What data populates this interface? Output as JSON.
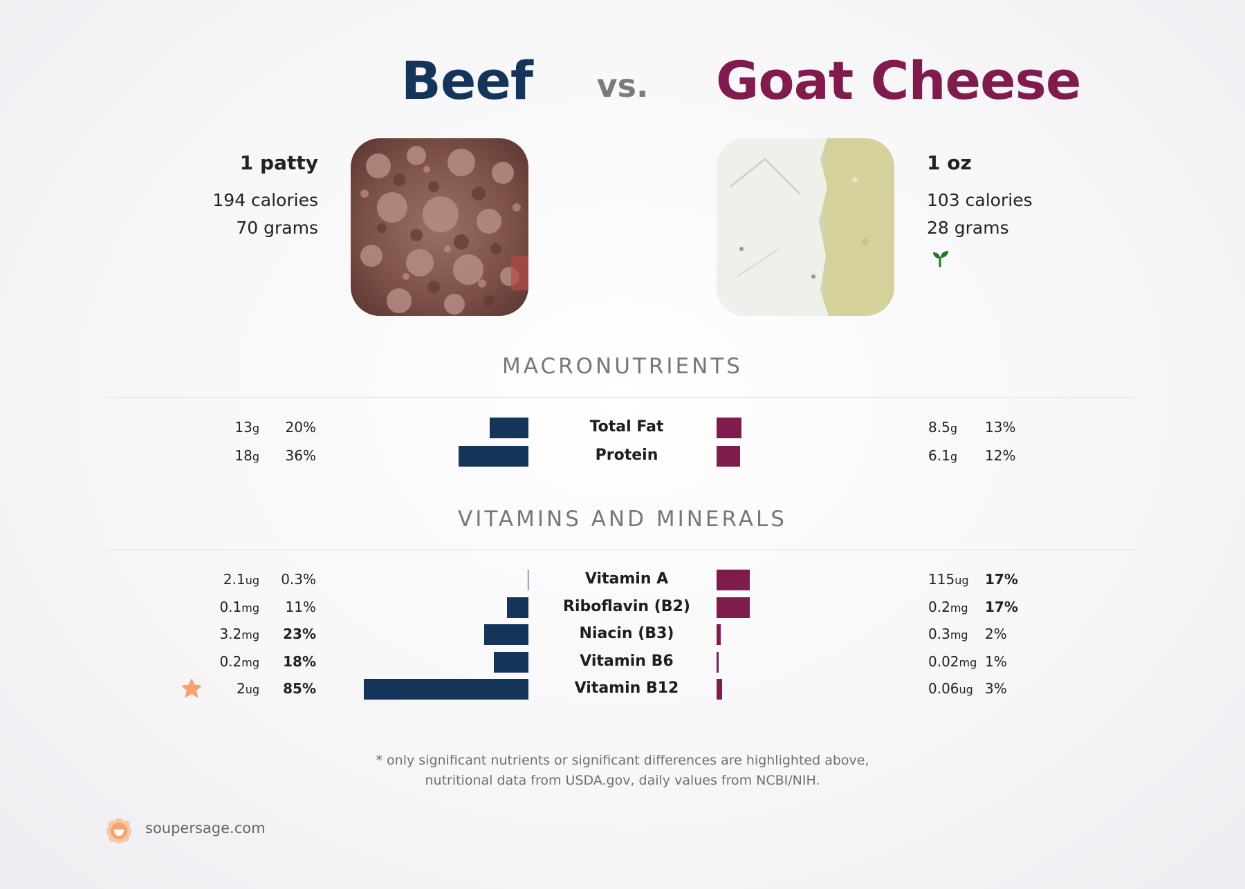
{
  "food_left": {
    "name": "Beef",
    "serving": "1 patty",
    "calories": "194 calories",
    "grams": "70 grams",
    "color": "#14345a"
  },
  "vs": "vs.",
  "food_right": {
    "name": "Goat Cheese",
    "serving": "1 oz",
    "calories": "103 calories",
    "grams": "28 grams",
    "color": "#7f1c4d",
    "icon": "leaf-icon"
  },
  "sections": {
    "macros": "MACRONUTRIENTS",
    "vitamins": "VITAMINS AND MINERALS"
  },
  "chart_data": {
    "type": "bar",
    "orientation": "horizontal-diverging",
    "series": [
      {
        "name": "Beef",
        "color": "#14345a"
      },
      {
        "name": "Goat Cheese",
        "color": "#7f1c4d"
      }
    ],
    "macros": [
      {
        "nutrient": "Total Fat",
        "left": {
          "amount": "13",
          "unit": "g",
          "pct": "20%",
          "value": 20,
          "bold": false
        },
        "right": {
          "amount": "8.5",
          "unit": "g",
          "pct": "13%",
          "value": 13,
          "bold": false
        }
      },
      {
        "nutrient": "Protein",
        "left": {
          "amount": "18",
          "unit": "g",
          "pct": "36%",
          "value": 36,
          "bold": false
        },
        "right": {
          "amount": "6.1",
          "unit": "g",
          "pct": "12%",
          "value": 12,
          "bold": false
        }
      }
    ],
    "vitamins": [
      {
        "nutrient": "Vitamin A",
        "left": {
          "amount": "2.1",
          "unit": "ug",
          "pct": "0.3%",
          "value": 0.3,
          "bold": false
        },
        "right": {
          "amount": "115",
          "unit": "ug",
          "pct": "17%",
          "value": 17,
          "bold": true
        }
      },
      {
        "nutrient": "Riboflavin (B2)",
        "left": {
          "amount": "0.1",
          "unit": "mg",
          "pct": "11%",
          "value": 11,
          "bold": false
        },
        "right": {
          "amount": "0.2",
          "unit": "mg",
          "pct": "17%",
          "value": 17,
          "bold": true
        }
      },
      {
        "nutrient": "Niacin (B3)",
        "left": {
          "amount": "3.2",
          "unit": "mg",
          "pct": "23%",
          "value": 23,
          "bold": true
        },
        "right": {
          "amount": "0.3",
          "unit": "mg",
          "pct": "2%",
          "value": 2,
          "bold": false
        }
      },
      {
        "nutrient": "Vitamin B6",
        "left": {
          "amount": "0.2",
          "unit": "mg",
          "pct": "18%",
          "value": 18,
          "bold": true
        },
        "right": {
          "amount": "0.02",
          "unit": "mg",
          "pct": "1%",
          "value": 1,
          "bold": false
        }
      },
      {
        "nutrient": "Vitamin B12",
        "left": {
          "amount": "2",
          "unit": "ug",
          "pct": "85%",
          "value": 85,
          "bold": true,
          "star": true
        },
        "right": {
          "amount": "0.06",
          "unit": "ug",
          "pct": "3%",
          "value": 3,
          "bold": false
        }
      }
    ]
  },
  "footnote": {
    "line1": "* only significant nutrients or significant differences are highlighted above,",
    "line2": "nutritional data from USDA.gov, daily values from NCBI/NIH."
  },
  "brand": {
    "name": "soupersage.com",
    "icon": "soupersage-logo-icon",
    "color": "#f6a36c"
  }
}
